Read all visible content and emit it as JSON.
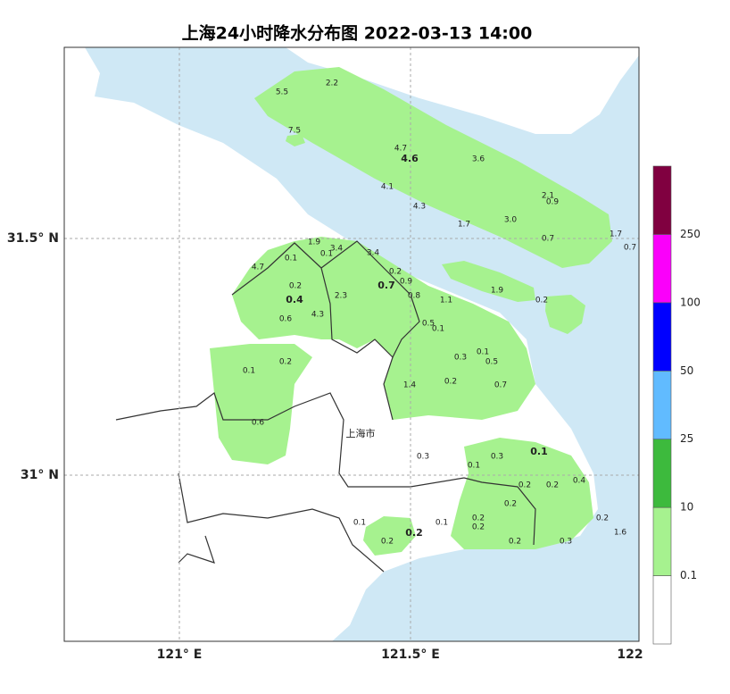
{
  "title": "上海24小时降水分布图 2022-03-13 14:00",
  "axes": {
    "y": [
      "31.5° N",
      "31° N"
    ],
    "x": [
      "121° E",
      "121.5° E",
      "122"
    ]
  },
  "city_label": "上海市",
  "legend": {
    "colors": [
      "#ffffff",
      "#a6f28f",
      "#3dba3d",
      "#61bbff",
      "#0000ff",
      "#fa00fa",
      "#800040"
    ],
    "labels": [
      "0.1",
      "10",
      "25",
      "50",
      "100",
      "250"
    ]
  },
  "stations": [
    "5.5",
    "2.2",
    "7.5",
    "4.7",
    "4.6",
    "3.6",
    "4.1",
    "4.3",
    "2.1",
    "0.9",
    "1.7",
    "3.0",
    "0.7",
    "1.7",
    "0.7",
    "1.9",
    "3.4",
    "0.1",
    "3.4",
    "4.7",
    "0.1",
    "0.2",
    "0.9",
    "0.2",
    "0.7",
    "2.3",
    "0.4",
    "0.8",
    "1.1",
    "1.9",
    "0.2",
    "4.3",
    "0.6",
    "0.5",
    "0.1",
    "0.1",
    "0.2",
    "0.3",
    "0.1",
    "0.5",
    "1.4",
    "0.2",
    "0.7",
    "0.6",
    "0.1",
    "0.3",
    "0.3",
    "0.1",
    "0.2",
    "0.2",
    "0.4",
    "0.2",
    "0.1",
    "0.2",
    "0.1",
    "0.2",
    "0.2",
    "0.2",
    "0.2",
    "0.3",
    "0.2",
    "1.6"
  ]
}
